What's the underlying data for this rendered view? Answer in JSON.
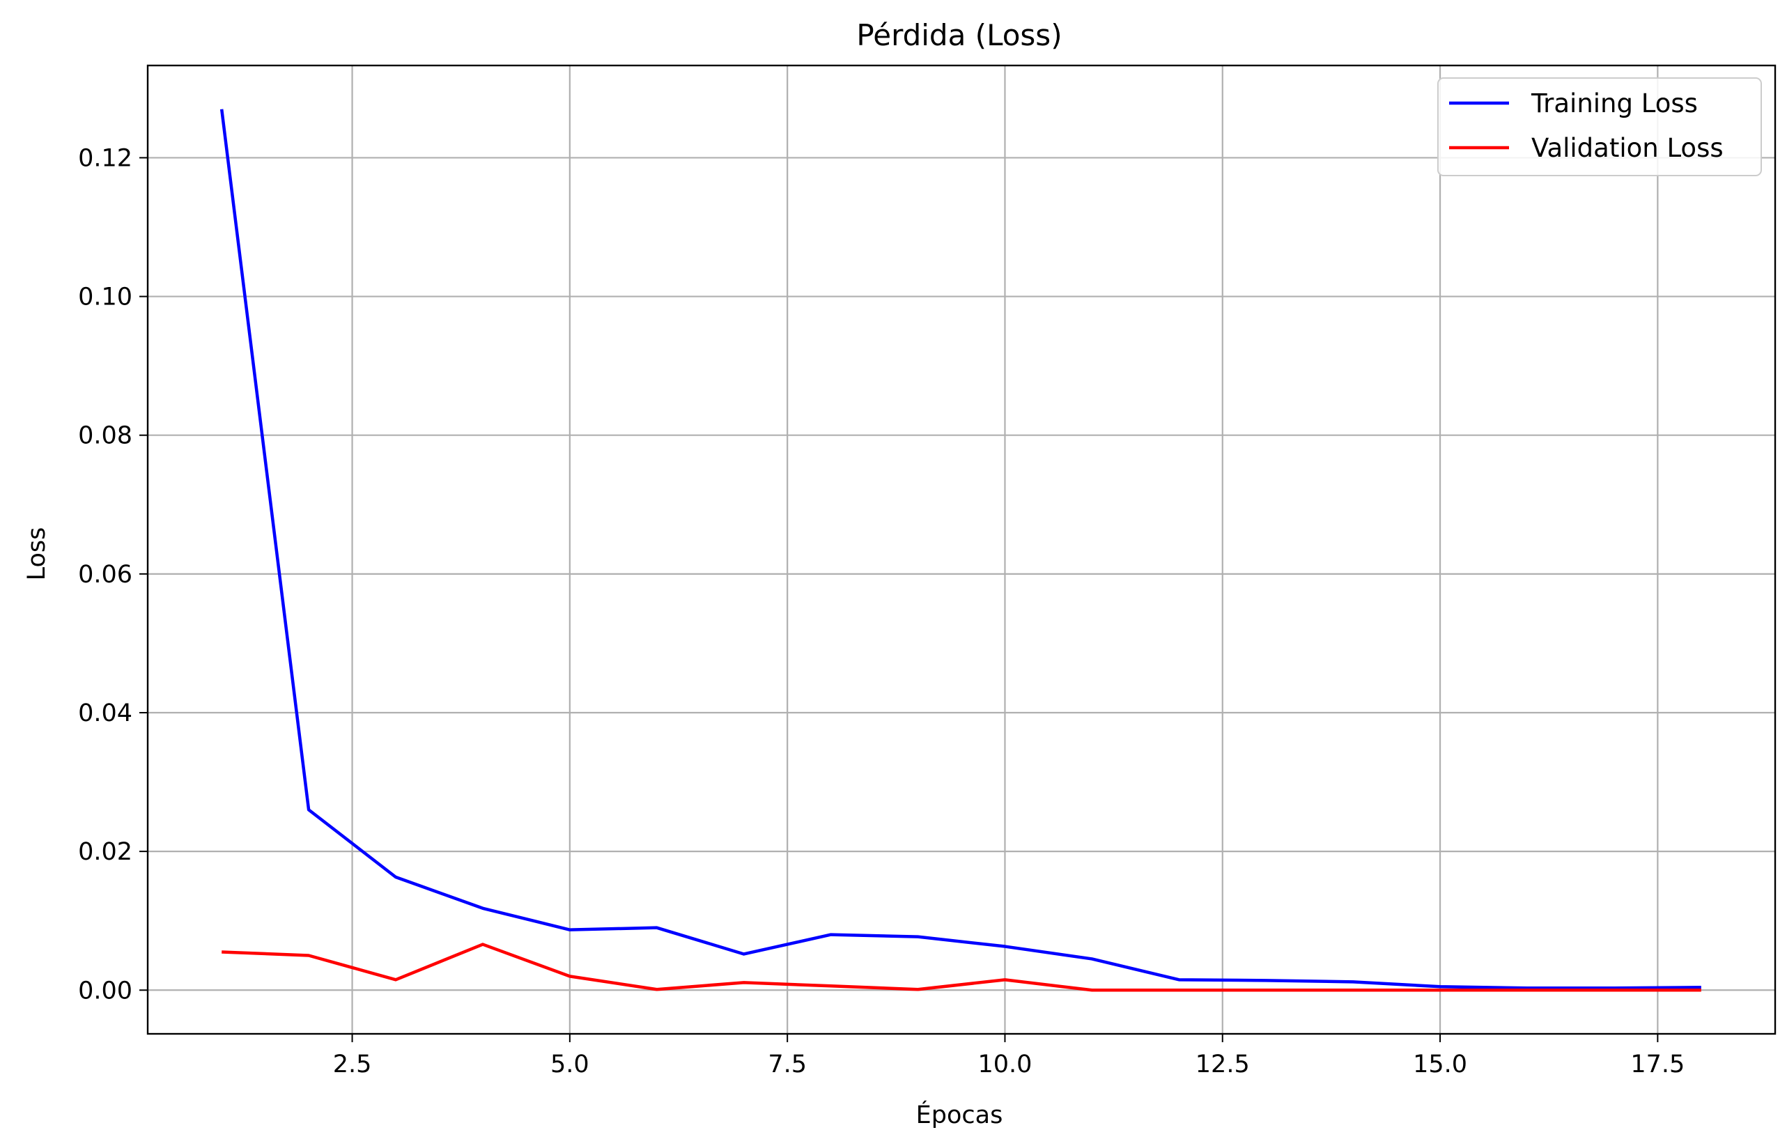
{
  "chart_data": {
    "type": "line",
    "title": "Pérdida (Loss)",
    "xlabel": "Épocas",
    "ylabel": "Loss",
    "x": [
      1,
      2,
      3,
      4,
      5,
      6,
      7,
      8,
      9,
      10,
      11,
      12,
      13,
      14,
      15,
      16,
      17,
      18
    ],
    "series": [
      {
        "name": "Training Loss",
        "color": "#0000ff",
        "values": [
          0.127,
          0.026,
          0.0163,
          0.0118,
          0.0087,
          0.009,
          0.0052,
          0.008,
          0.0077,
          0.0063,
          0.0045,
          0.0015,
          0.0014,
          0.0012,
          0.0005,
          0.0003,
          0.0003,
          0.0004
        ]
      },
      {
        "name": "Validation Loss",
        "color": "#ff0000",
        "values": [
          0.0055,
          0.005,
          0.0015,
          0.0066,
          0.002,
          0.0001,
          0.0011,
          0.0006,
          0.0001,
          0.0015,
          0.0,
          0.0,
          0.0,
          0.0,
          0.0,
          0.0,
          0.0,
          0.0
        ]
      }
    ],
    "xlim": [
      0.15,
      18.85
    ],
    "ylim": [
      -0.0063,
      0.1333
    ],
    "xticks": [
      2.5,
      5.0,
      7.5,
      10.0,
      12.5,
      15.0,
      17.5
    ],
    "xtick_labels": [
      "2.5",
      "5.0",
      "7.5",
      "10.0",
      "12.5",
      "15.0",
      "17.5"
    ],
    "yticks": [
      0.0,
      0.02,
      0.04,
      0.06,
      0.08,
      0.1,
      0.12
    ],
    "ytick_labels": [
      "0.00",
      "0.02",
      "0.04",
      "0.06",
      "0.08",
      "0.10",
      "0.12"
    ],
    "grid": true,
    "legend_position": "top-right"
  }
}
